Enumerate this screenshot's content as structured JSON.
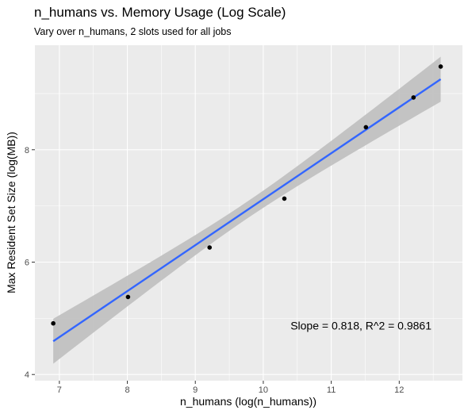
{
  "chart_data": {
    "type": "scatter",
    "title": "n_humans vs. Memory Usage (Log Scale)",
    "subtitle": "Vary over n_humans, 2 slots used for all jobs",
    "xlabel": "n_humans (log(n_humans))",
    "ylabel": "Max Resident Set Size (log(MB))",
    "xlim": [
      6.64,
      12.93
    ],
    "ylim": [
      3.89,
      9.86
    ],
    "x_ticks": [
      7,
      8,
      9,
      10,
      11,
      12
    ],
    "y_ticks": [
      4,
      6,
      8
    ],
    "grid": true,
    "points": [
      {
        "x": 6.91,
        "y": 4.91
      },
      {
        "x": 8.01,
        "y": 5.38
      },
      {
        "x": 9.21,
        "y": 6.26
      },
      {
        "x": 10.31,
        "y": 7.13
      },
      {
        "x": 11.51,
        "y": 8.4
      },
      {
        "x": 12.21,
        "y": 8.93
      },
      {
        "x": 12.61,
        "y": 9.48
      }
    ],
    "fit": {
      "slope": 0.818,
      "intercept": -1.06,
      "x_range": [
        6.91,
        12.61
      ],
      "color": "#3366ff",
      "band_color": "#bfbfbf",
      "ci_half_width_ends": 0.4,
      "ci_half_width_center": 0.15
    },
    "annotation": {
      "text": "Slope = 0.818, R^2 = 0.9861",
      "x": 10.4,
      "y": 4.87
    },
    "panel_color": "#ebebeb",
    "point_color": "#000000"
  }
}
